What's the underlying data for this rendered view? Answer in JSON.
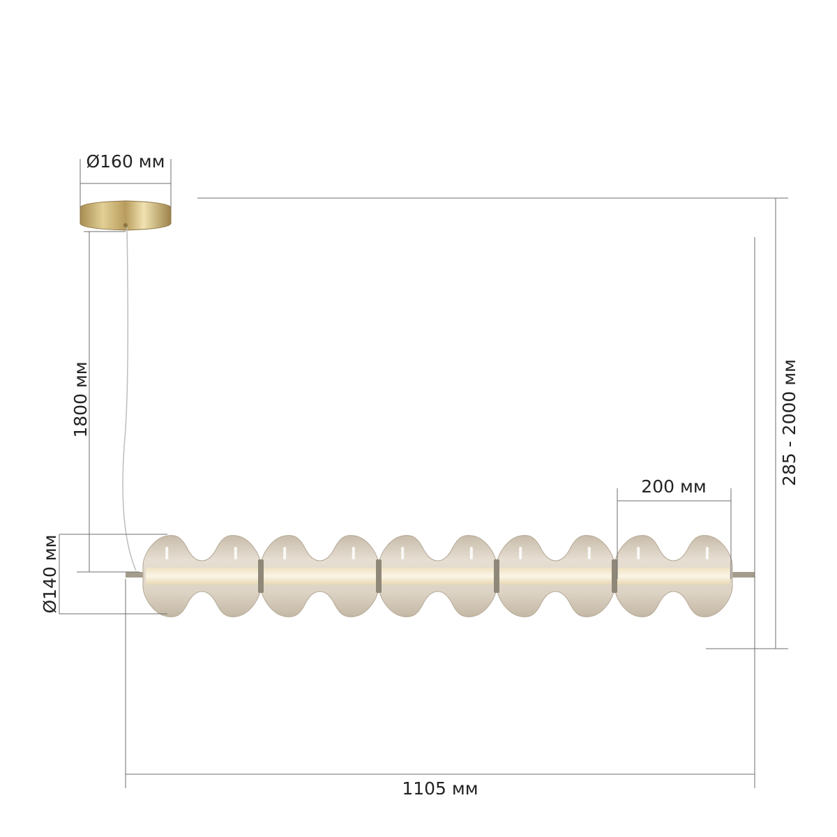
{
  "dimensions": {
    "canopy_diameter": "Ø160 мм",
    "cable_length": "1800 мм",
    "shade_diameter": "Ø140 мм",
    "module_length": "200 мм",
    "height_range": "285 - 2000 мм",
    "total_length": "1105 мм"
  },
  "product": {
    "module_count": 5,
    "colors": {
      "brass": "#c9b070",
      "glass": "#d9d0c2",
      "led": "#f4ead2",
      "dimension_line": "#6e6e6e"
    }
  }
}
